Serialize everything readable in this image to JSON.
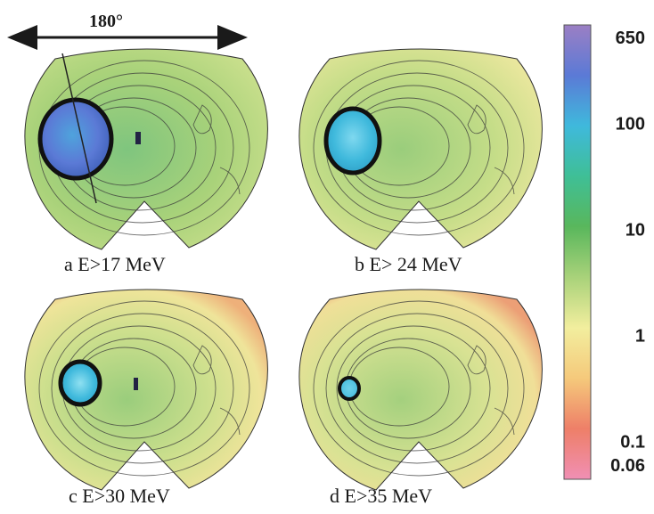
{
  "angle_label": "180°",
  "panels": [
    {
      "id": "a",
      "label": "a E>17 MeV",
      "hotspot_level": 0.78,
      "background_level": 0.38
    },
    {
      "id": "b",
      "label": "b  E> 24 MeV",
      "hotspot_level": 0.66,
      "background_level": 0.3
    },
    {
      "id": "c",
      "label": "c  E>30 MeV",
      "hotspot_level": 0.62,
      "background_level": 0.27
    },
    {
      "id": "d",
      "label": "d  E>35 MeV",
      "hotspot_level": 0.5,
      "background_level": 0.25
    }
  ],
  "colorbar": {
    "scale": "log",
    "ticks": [
      "650",
      "100",
      "10",
      "1",
      "0.1",
      "0.06"
    ],
    "colors": [
      "#9b7fc4",
      "#5b7ad6",
      "#3fb9dc",
      "#3fbf96",
      "#59b75c",
      "#a9d27a",
      "#f2ee9e",
      "#f5c97b",
      "#ee7f68",
      "#f08fb4"
    ]
  }
}
